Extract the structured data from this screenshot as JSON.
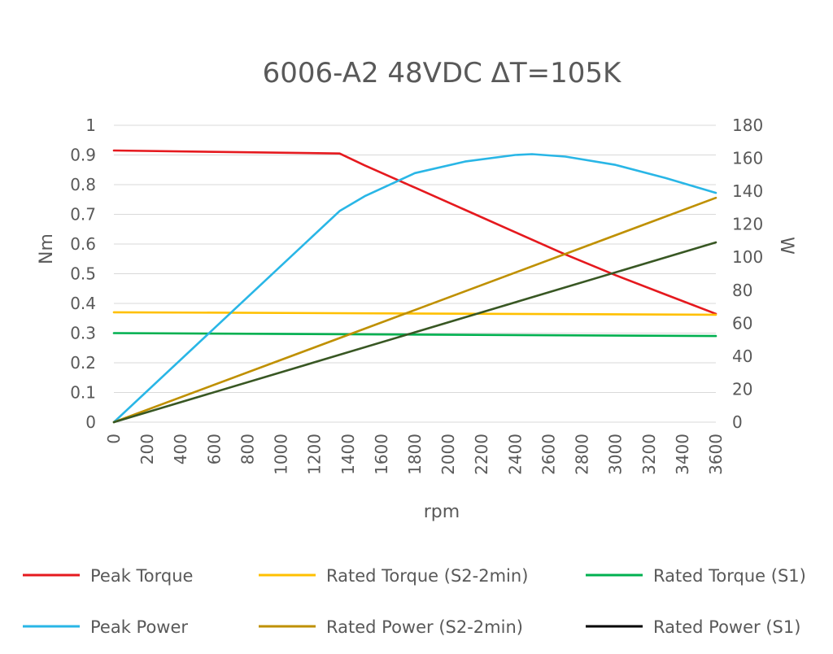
{
  "chart_data": {
    "type": "line",
    "title": "6006-A2 48VDC ΔT=105K",
    "xlabel": "rpm",
    "ylabel_left": "Nm",
    "ylabel_right": "W",
    "xlim": [
      0,
      3600
    ],
    "ylim_left": [
      0,
      1
    ],
    "ylim_right": [
      0,
      180
    ],
    "grid": true,
    "legend_position": "bottom",
    "x_ticks": [
      "0",
      "200",
      "400",
      "600",
      "800",
      "1000",
      "1200",
      "1400",
      "1600",
      "1800",
      "2000",
      "2200",
      "2400",
      "2600",
      "2800",
      "3000",
      "3200",
      "3400",
      "3600"
    ],
    "y_left_ticks": [
      "0",
      "0.1",
      "0.2",
      "0.3",
      "0.4",
      "0.5",
      "0.6",
      "0.7",
      "0.8",
      "0.9",
      "1"
    ],
    "y_right_ticks": [
      "0",
      "20",
      "40",
      "60",
      "80",
      "100",
      "120",
      "140",
      "160",
      "180"
    ],
    "series": [
      {
        "name": "Peak Torque",
        "axis": "left",
        "color": "#e5191e",
        "x": [
          0,
          1350,
          1500,
          1800,
          2100,
          2400,
          2700,
          3000,
          3300,
          3600
        ],
        "y": [
          0.915,
          0.905,
          0.865,
          0.79,
          0.715,
          0.64,
          0.565,
          0.495,
          0.43,
          0.365
        ]
      },
      {
        "name": "Rated Torque (S2-2min)",
        "axis": "left",
        "color": "#ffc000",
        "x": [
          0,
          3600
        ],
        "y": [
          0.37,
          0.362
        ]
      },
      {
        "name": "Rated Torque (S1)",
        "axis": "left",
        "color": "#00b050",
        "x": [
          0,
          3600
        ],
        "y": [
          0.3,
          0.29
        ]
      },
      {
        "name": "Peak Power",
        "axis": "right",
        "color": "#29b6e6",
        "x": [
          0,
          1350,
          1500,
          1800,
          2100,
          2400,
          2500,
          2700,
          3000,
          3300,
          3600
        ],
        "y": [
          0,
          128,
          137,
          151,
          158,
          162,
          162.5,
          161,
          156,
          148,
          139
        ]
      },
      {
        "name": "Rated Power (S2-2min)",
        "axis": "right",
        "color": "#bf9000",
        "x": [
          0,
          3600
        ],
        "y": [
          0,
          136
        ]
      },
      {
        "name": "Rated Power (S1)",
        "axis": "right",
        "color": "#385723",
        "legend_color": "#000000",
        "x": [
          0,
          3600
        ],
        "y": [
          0,
          109
        ]
      }
    ]
  }
}
